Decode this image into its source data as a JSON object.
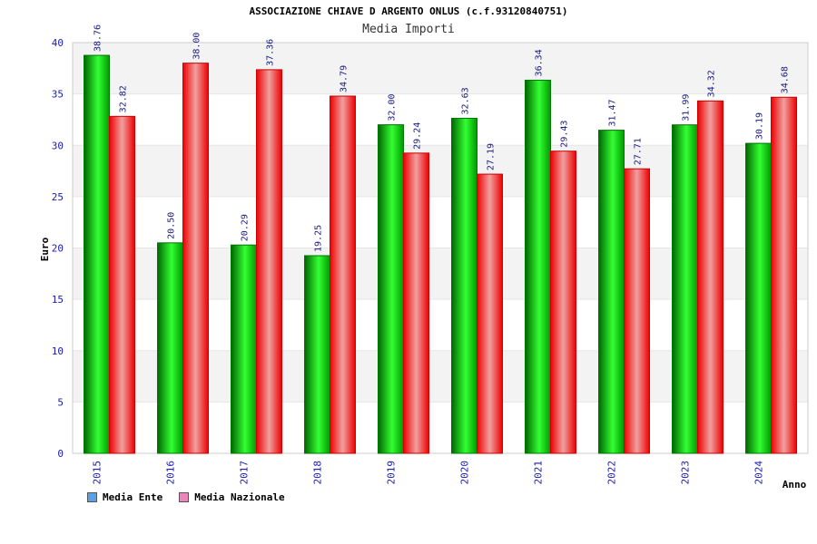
{
  "chart_data": {
    "type": "bar",
    "title": "ASSOCIAZIONE CHIAVE D ARGENTO ONLUS (c.f.93120840751)",
    "subtitle": "Media Importi",
    "xlabel": "Anno",
    "ylabel": "Euro",
    "ylim": [
      0,
      40
    ],
    "yticks": [
      "0",
      "5",
      "10",
      "15",
      "20",
      "25",
      "30",
      "35",
      "40"
    ],
    "categories": [
      "2015",
      "2016",
      "2017",
      "2018",
      "2019",
      "2020",
      "2021",
      "2022",
      "2023",
      "2024"
    ],
    "series": [
      {
        "name": "Media Ente",
        "values": [
          38.76,
          20.5,
          20.29,
          19.25,
          32.0,
          32.63,
          36.34,
          31.47,
          31.99,
          30.19
        ],
        "labels": [
          "38.76",
          "20.50",
          "20.29",
          "19.25",
          "32.00",
          "32.63",
          "36.34",
          "31.47",
          "31.99",
          "30.19"
        ]
      },
      {
        "name": "Media Nazionale",
        "values": [
          32.82,
          38.0,
          37.36,
          34.79,
          29.24,
          27.19,
          29.43,
          27.71,
          34.32,
          34.68
        ],
        "labels": [
          "32.82",
          "38.00",
          "37.36",
          "34.79",
          "29.24",
          "27.19",
          "29.43",
          "27.71",
          "34.32",
          "34.68"
        ]
      }
    ],
    "grid": true,
    "legend_position": "bottom-left"
  },
  "legend": {
    "items": [
      {
        "label": "Media Ente",
        "color": "#5aa0e8"
      },
      {
        "label": "Media Nazionale",
        "color": "#e888b8"
      }
    ]
  },
  "colors": {
    "ente_dark": "#006600",
    "ente_light": "#33ff33",
    "nazionale_dark": "#ee0000",
    "nazionale_light": "#f0a0a0",
    "band": "#f3f3f3"
  }
}
